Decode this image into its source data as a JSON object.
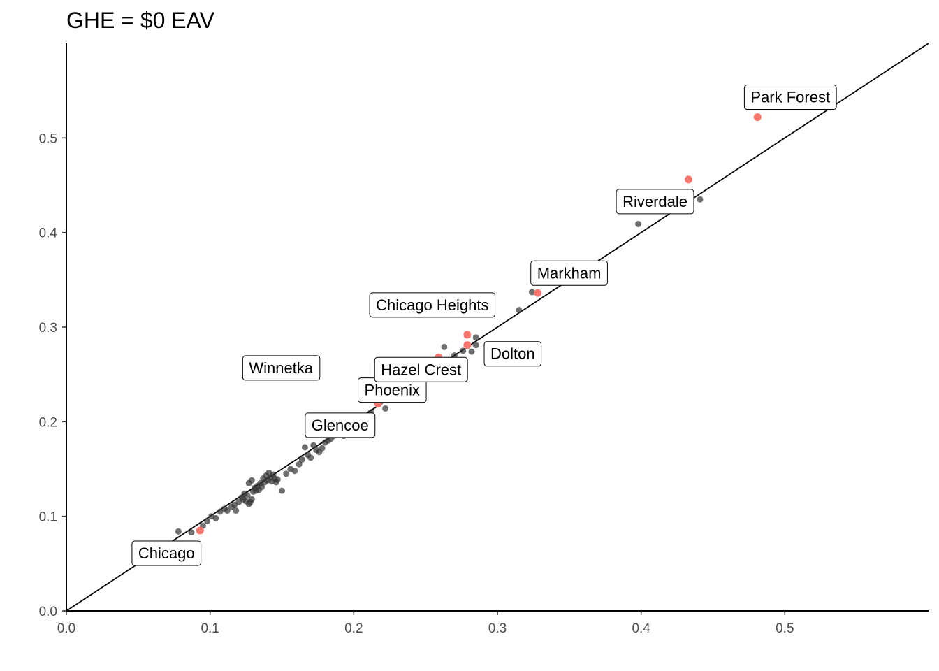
{
  "chart_data": {
    "type": "scatter",
    "title": "GHE = $0 EAV",
    "xlabel": "",
    "ylabel": "",
    "xlim": [
      0,
      0.6
    ],
    "ylim": [
      0,
      0.6
    ],
    "x_ticks": [
      "0.0",
      "0.1",
      "0.2",
      "0.3",
      "0.4",
      "0.5"
    ],
    "y_ticks": [
      "0.0",
      "0.1",
      "0.2",
      "0.3",
      "0.4",
      "0.5"
    ],
    "grid": false,
    "reference_line": {
      "slope": 1,
      "intercept": 0
    },
    "colors": {
      "background_points": "#333333",
      "highlight_points": "#F8766D",
      "line": "#000000"
    },
    "series": [
      {
        "points": [
          [
            0.078,
            0.084
          ],
          [
            0.087,
            0.083
          ],
          [
            0.095,
            0.09
          ],
          [
            0.098,
            0.095
          ],
          [
            0.101,
            0.1
          ],
          [
            0.104,
            0.098
          ],
          [
            0.107,
            0.105
          ],
          [
            0.11,
            0.108
          ],
          [
            0.112,
            0.106
          ],
          [
            0.115,
            0.11
          ],
          [
            0.117,
            0.112
          ],
          [
            0.118,
            0.106
          ],
          [
            0.12,
            0.115
          ],
          [
            0.122,
            0.12
          ],
          [
            0.123,
            0.118
          ],
          [
            0.124,
            0.124
          ],
          [
            0.125,
            0.116
          ],
          [
            0.126,
            0.122
          ],
          [
            0.127,
            0.113
          ],
          [
            0.128,
            0.115
          ],
          [
            0.129,
            0.118
          ],
          [
            0.13,
            0.126
          ],
          [
            0.131,
            0.13
          ],
          [
            0.132,
            0.127
          ],
          [
            0.133,
            0.132
          ],
          [
            0.134,
            0.128
          ],
          [
            0.135,
            0.135
          ],
          [
            0.136,
            0.131
          ],
          [
            0.137,
            0.14
          ],
          [
            0.138,
            0.136
          ],
          [
            0.139,
            0.143
          ],
          [
            0.14,
            0.138
          ],
          [
            0.141,
            0.146
          ],
          [
            0.142,
            0.141
          ],
          [
            0.143,
            0.137
          ],
          [
            0.144,
            0.144
          ],
          [
            0.145,
            0.14
          ],
          [
            0.146,
            0.136
          ],
          [
            0.147,
            0.139
          ],
          [
            0.15,
            0.127
          ],
          [
            0.127,
            0.135
          ],
          [
            0.129,
            0.138
          ],
          [
            0.153,
            0.145
          ],
          [
            0.156,
            0.15
          ],
          [
            0.159,
            0.148
          ],
          [
            0.162,
            0.155
          ],
          [
            0.164,
            0.16
          ],
          [
            0.166,
            0.173
          ],
          [
            0.168,
            0.165
          ],
          [
            0.17,
            0.162
          ],
          [
            0.172,
            0.175
          ],
          [
            0.174,
            0.17
          ],
          [
            0.176,
            0.168
          ],
          [
            0.178,
            0.172
          ],
          [
            0.18,
            0.178
          ],
          [
            0.182,
            0.18
          ],
          [
            0.184,
            0.182
          ],
          [
            0.186,
            0.185
          ],
          [
            0.193,
            0.185
          ],
          [
            0.2,
            0.198
          ],
          [
            0.206,
            0.204
          ],
          [
            0.212,
            0.21
          ],
          [
            0.218,
            0.22
          ],
          [
            0.222,
            0.214
          ],
          [
            0.263,
            0.279
          ],
          [
            0.27,
            0.27
          ],
          [
            0.276,
            0.275
          ],
          [
            0.282,
            0.274
          ],
          [
            0.285,
            0.281
          ],
          [
            0.285,
            0.289
          ],
          [
            0.295,
            0.333
          ],
          [
            0.315,
            0.318
          ],
          [
            0.324,
            0.337
          ],
          [
            0.398,
            0.409
          ],
          [
            0.441,
            0.435
          ]
        ]
      },
      {
        "points": [
          [
            0.093,
            0.085
          ],
          [
            0.18,
            0.187
          ],
          [
            0.208,
            0.204
          ],
          [
            0.217,
            0.219
          ],
          [
            0.259,
            0.268
          ],
          [
            0.279,
            0.281
          ],
          [
            0.279,
            0.292
          ],
          [
            0.328,
            0.336
          ],
          [
            0.433,
            0.456
          ],
          [
            0.481,
            0.522
          ]
        ]
      }
    ],
    "labels": [
      {
        "text": "Chicago",
        "x": 0.093,
        "y": 0.085
      },
      {
        "text": "Winnetka",
        "x": 0.18,
        "y": 0.187
      },
      {
        "text": "Glencoe",
        "x": 0.208,
        "y": 0.204
      },
      {
        "text": "Phoenix",
        "x": 0.217,
        "y": 0.219
      },
      {
        "text": "Hazel Crest",
        "x": 0.259,
        "y": 0.268
      },
      {
        "text": "Dolton",
        "x": 0.279,
        "y": 0.281
      },
      {
        "text": "Chicago Heights",
        "x": 0.279,
        "y": 0.292
      },
      {
        "text": "Markham",
        "x": 0.328,
        "y": 0.336
      },
      {
        "text": "Riverdale",
        "x": 0.433,
        "y": 0.456
      },
      {
        "text": "Park Forest",
        "x": 0.481,
        "y": 0.522
      }
    ]
  }
}
